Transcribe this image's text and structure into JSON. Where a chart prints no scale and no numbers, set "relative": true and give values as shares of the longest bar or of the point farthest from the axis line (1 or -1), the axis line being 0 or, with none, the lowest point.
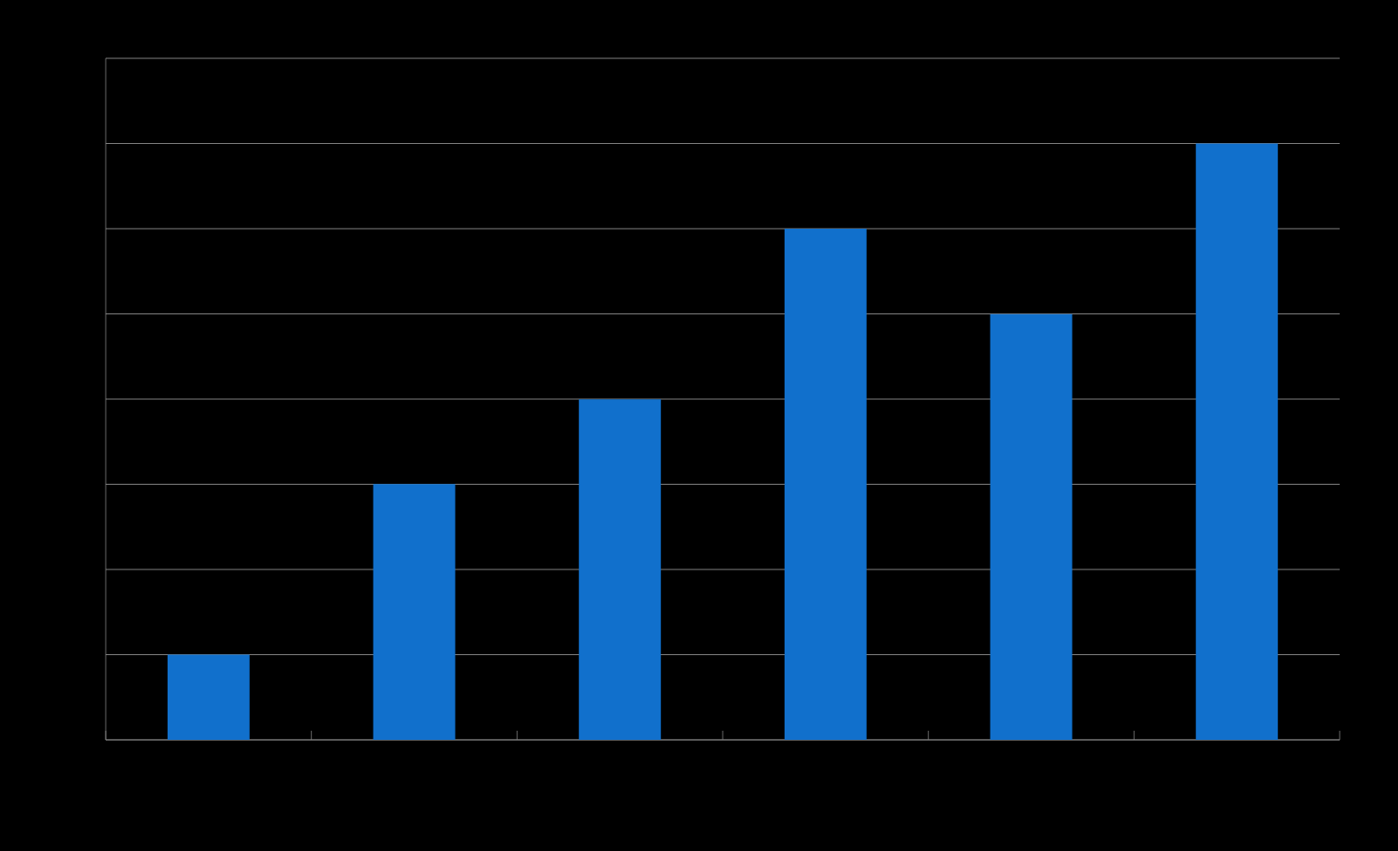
{
  "chart_data": {
    "type": "bar",
    "relative": true,
    "categories": [
      null,
      null,
      null,
      null,
      null,
      null
    ],
    "values": [
      0.143,
      0.429,
      0.571,
      0.857,
      0.714,
      1
    ],
    "color": "#1170cc",
    "grid": "y"
  }
}
